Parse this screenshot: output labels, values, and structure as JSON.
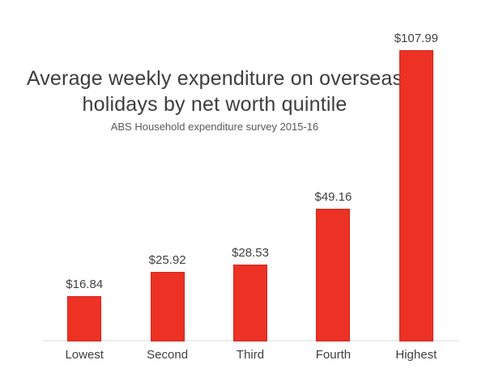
{
  "colors": {
    "bar_fill": "#ed3124",
    "bar_border": "#d0281e",
    "title_text": "#3d3d3d",
    "subtitle_text": "#595959",
    "label_text": "#404040",
    "axis_line": "#ececec",
    "background": "#ffffff"
  },
  "header": {
    "title_lines": [
      "Average weekly expenditure on overseas",
      "holidays by net worth quintile"
    ],
    "subtitle": "ABS Household expenditure survey 2015-16"
  },
  "chart_data": {
    "type": "bar",
    "title": "Average weekly expenditure on overseas holidays by net worth quintile",
    "subtitle": "ABS Household expenditure survey 2015-16",
    "categories": [
      "Lowest",
      "Second",
      "Third",
      "Fourth",
      "Highest"
    ],
    "values": [
      16.84,
      25.92,
      28.53,
      49.16,
      107.99
    ],
    "data_labels": [
      "$16.84",
      "$25.92",
      "$28.53",
      "$49.16",
      "$107.99"
    ],
    "xlabel": "",
    "ylabel": "",
    "ylim": [
      0,
      107.99
    ],
    "grid": false,
    "legend": false,
    "bar_color": "#ed3124",
    "x_axis_label_meaning": "net worth quintile"
  }
}
